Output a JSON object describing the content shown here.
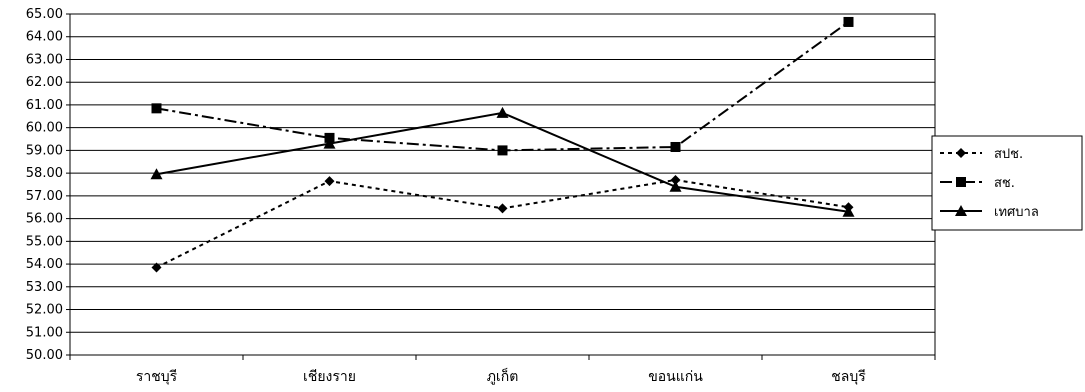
{
  "chart_data": {
    "type": "line",
    "categories": [
      "ราชบุรี",
      "เชียงราย",
      "ภูเก็ต",
      "ขอนแก่น",
      "ชลบุรี"
    ],
    "series": [
      {
        "name": "สปช.",
        "values": [
          53.85,
          57.65,
          56.45,
          57.7,
          56.5
        ],
        "dash": "dotted",
        "marker": "diamond"
      },
      {
        "name": "สช.",
        "values": [
          60.85,
          59.55,
          59.0,
          59.15,
          64.65
        ],
        "dash": "dashdot",
        "marker": "square"
      },
      {
        "name": "เทศบาล",
        "values": [
          57.95,
          59.3,
          60.65,
          57.4,
          56.3
        ],
        "dash": "solid",
        "marker": "triangle"
      }
    ],
    "ylim": [
      50,
      65
    ],
    "ystep": 1,
    "ytick_format_decimals": 2,
    "grid": true,
    "legend_position": "right",
    "line_color": "#000000"
  }
}
